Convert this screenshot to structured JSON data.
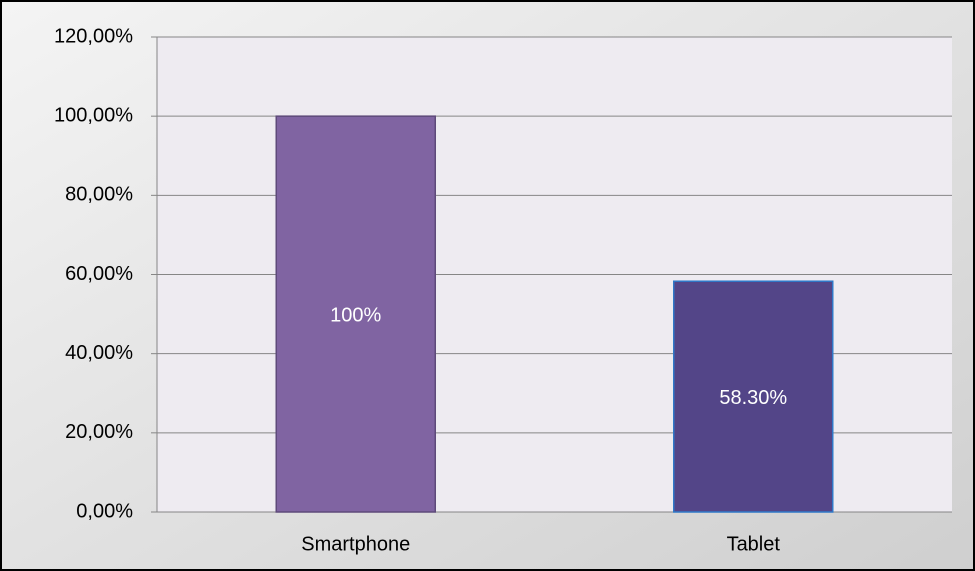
{
  "chart_data": {
    "type": "bar",
    "categories": [
      "Smartphone",
      "Tablet"
    ],
    "values": [
      100,
      58.3
    ],
    "value_labels": [
      "100%",
      "58.30%"
    ],
    "colors": [
      "#8064a2",
      "#534588"
    ],
    "edge_colors": [
      "#5e4a7a",
      "#2f78c8"
    ],
    "ylim": [
      0,
      120
    ],
    "yticks": [
      {
        "value": 0,
        "label": "0,00%"
      },
      {
        "value": 20,
        "label": "20,00%"
      },
      {
        "value": 40,
        "label": "40,00%"
      },
      {
        "value": 60,
        "label": "60,00%"
      },
      {
        "value": 80,
        "label": "80,00%"
      },
      {
        "value": 100,
        "label": "100,00%"
      },
      {
        "value": 120,
        "label": "120,00%"
      }
    ],
    "grid": true
  }
}
